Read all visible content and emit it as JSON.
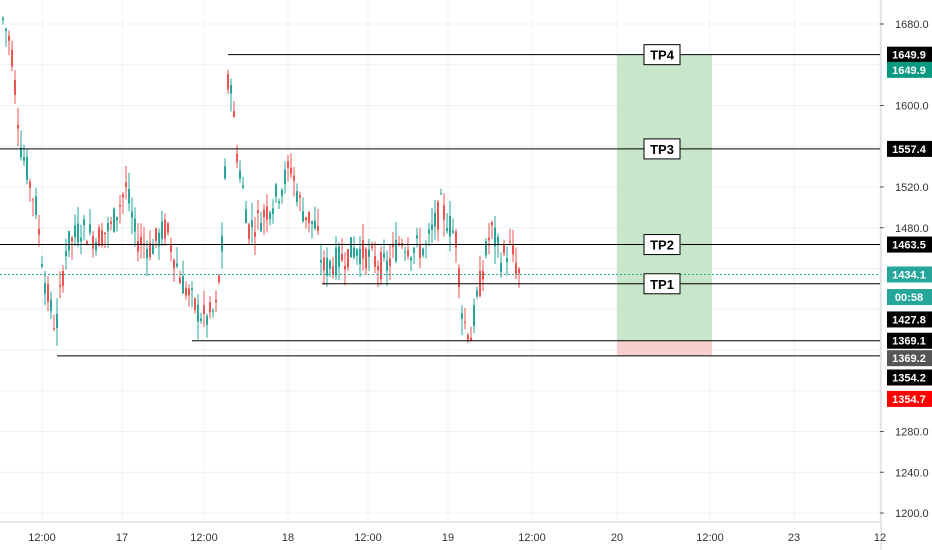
{
  "chart_data": {
    "type": "candlestick",
    "y_axis": {
      "ticks": [
        "1680.0",
        "1600.0",
        "1520.0",
        "1480.0",
        "1280.0",
        "1240.0",
        "1200.0"
      ],
      "tick_values": [
        1680,
        1600,
        1520,
        1480,
        1280,
        1240,
        1200
      ],
      "range": [
        1192,
        1705
      ]
    },
    "x_axis": {
      "ticks": [
        "12:00",
        "17",
        "12:00",
        "18",
        "12:00",
        "19",
        "12:00",
        "20",
        "12:00",
        "23",
        "12"
      ]
    },
    "price_tags": [
      {
        "label": "1649.9",
        "value": 1649.9,
        "bg": "#000000",
        "fg": "#ffffff"
      },
      {
        "label": "1649.9",
        "value": 1635,
        "bg": "#089981",
        "fg": "#ffffff"
      },
      {
        "label": "1557.4",
        "value": 1557.4,
        "bg": "#000000",
        "fg": "#ffffff"
      },
      {
        "label": "1463.5",
        "value": 1463.5,
        "bg": "#000000",
        "fg": "#ffffff"
      },
      {
        "label": "1434.1",
        "value": 1434.1,
        "bg": "#26a69a",
        "fg": "#ffffff"
      },
      {
        "label": "00:58",
        "value": 1412,
        "bg": "#26a69a",
        "fg": "#ffffff"
      },
      {
        "label": "1427.8",
        "value": 1390,
        "bg": "#000000",
        "fg": "#ffffff"
      },
      {
        "label": "1369.1",
        "value": 1369.1,
        "bg": "#000000",
        "fg": "#ffffff"
      },
      {
        "label": "1369.2",
        "value": 1352,
        "bg": "#555555",
        "fg": "#ffffff"
      },
      {
        "label": "1354.2",
        "value": 1333,
        "bg": "#000000",
        "fg": "#ffffff"
      },
      {
        "label": "1354.7",
        "value": 1312,
        "bg": "#ff0000",
        "fg": "#ffffff"
      }
    ],
    "levels": [
      {
        "name": "TP4",
        "value": 1649.9
      },
      {
        "name": "TP3",
        "value": 1557.4
      },
      {
        "name": "TP2",
        "value": 1463.5
      },
      {
        "name": "TP1",
        "value": 1425
      }
    ],
    "support_levels": [
      1369.1,
      1354.2
    ],
    "current_price": 1434.1,
    "target_zone": {
      "from": 1369.1,
      "to": 1649.9,
      "color": "#c8e6c9"
    },
    "stop_zone": {
      "from": 1354.7,
      "to": 1369.1,
      "color": "#f8cfcf"
    },
    "colors": {
      "up": "#26a69a",
      "down": "#ef5350",
      "grid": "#eef0f3",
      "line": "#000000",
      "current": "#26a69a"
    }
  }
}
